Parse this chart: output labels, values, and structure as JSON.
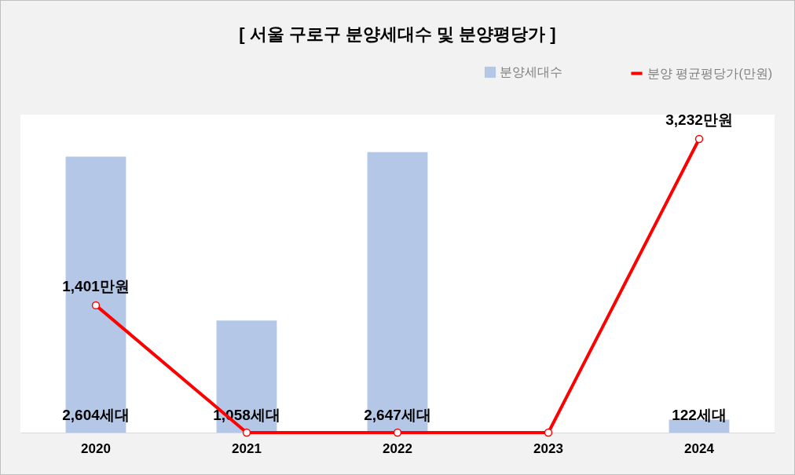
{
  "chart_data": {
    "type": "bar",
    "title": "[ 서울 구로구 분양세대수 및 분양평당가 ]",
    "categories": [
      "2020",
      "2021",
      "2022",
      "2023",
      "2024"
    ],
    "series": [
      {
        "name": "분양세대수",
        "color": "#b4c7e7",
        "values": [
          2604,
          1058,
          2647,
          null,
          122
        ],
        "value_labels": [
          "2,604세대",
          "1,058세대",
          "2,647세대",
          null,
          "122세대"
        ]
      },
      {
        "name": "분양 평균평당가(만원)",
        "type": "line",
        "axis": "y2",
        "color": "#ff0000",
        "marker": "circle",
        "values": [
          1401,
          0,
          0,
          0,
          3232
        ],
        "value_labels": [
          "1,401만원",
          null,
          null,
          null,
          "3,232만원"
        ]
      }
    ],
    "ylim": [
      0,
      3000
    ],
    "y2lim": [
      0,
      3500
    ],
    "tick_labels": "x",
    "grid": false,
    "legend": "top right"
  }
}
